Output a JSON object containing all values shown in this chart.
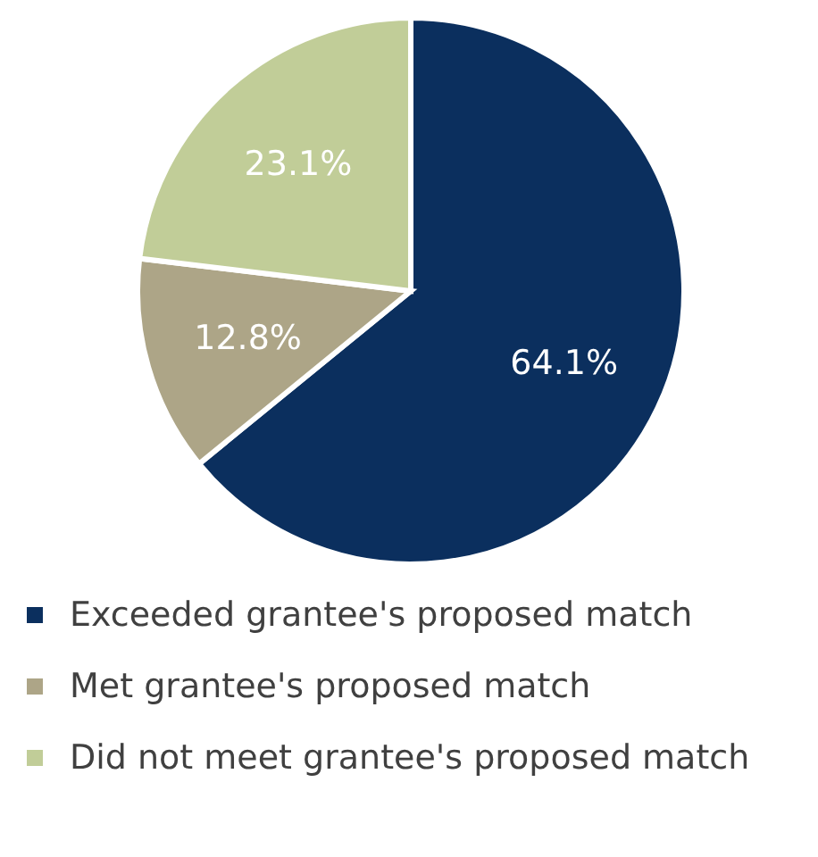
{
  "chart_data": {
    "type": "pie",
    "categories": [
      "Exceeded grantee's proposed match",
      "Met grantee's proposed match",
      "Did not meet grantee's proposed match"
    ],
    "values": [
      64.1,
      12.8,
      23.1
    ],
    "colors": [
      "#0b2f5e",
      "#ada587",
      "#c1cd98"
    ],
    "value_labels": [
      "64.1%",
      "12.8%",
      "23.1%"
    ],
    "legend": "bottom"
  }
}
